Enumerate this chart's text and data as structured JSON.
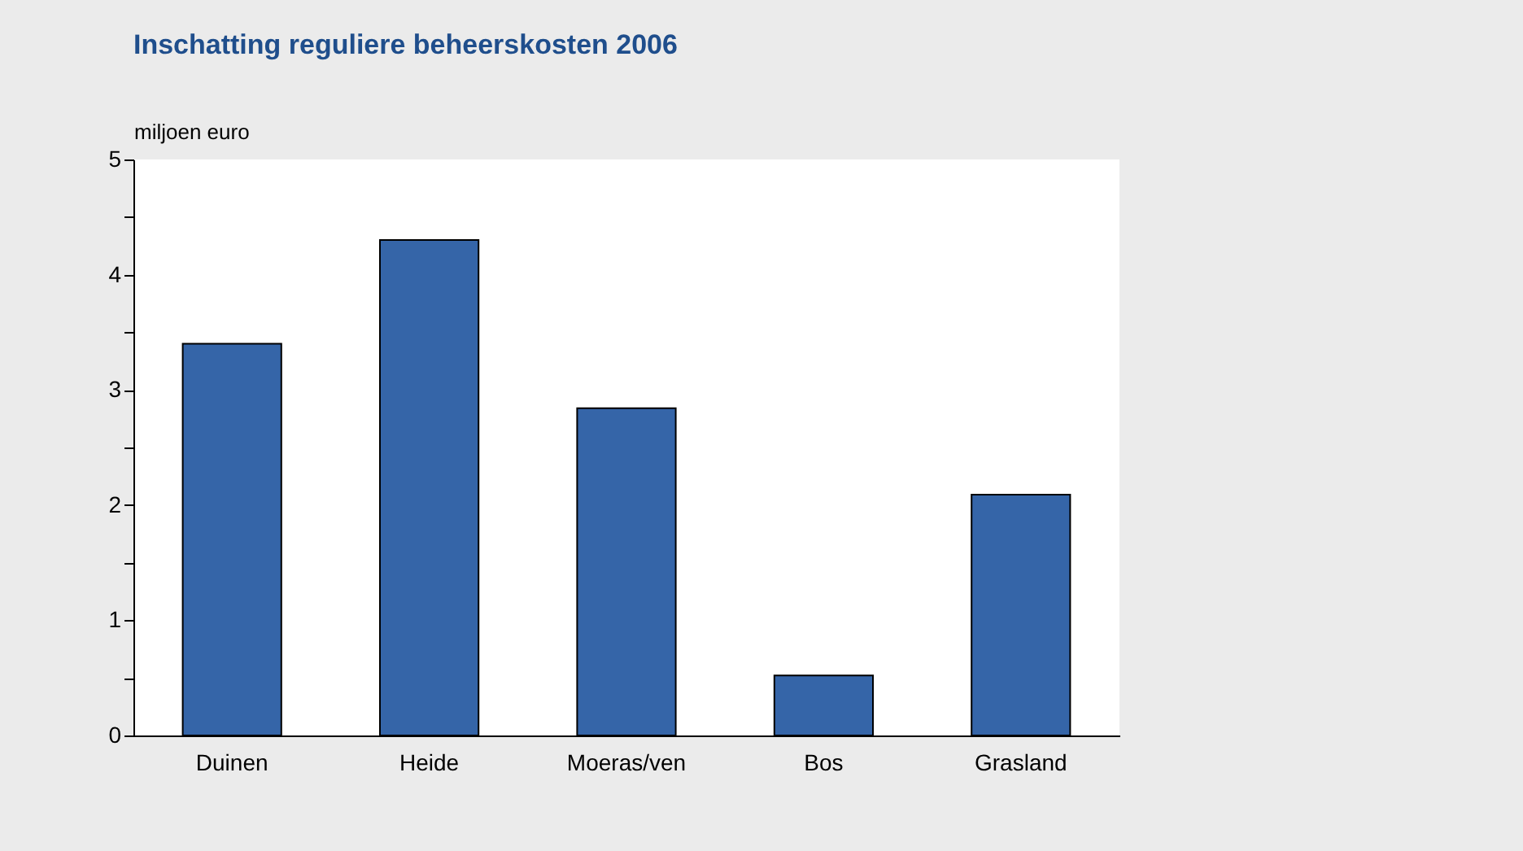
{
  "chart_data": {
    "type": "bar",
    "title": "Inschatting reguliere beheerskosten 2006",
    "ylabel": "miljoen euro",
    "categories": [
      "Duinen",
      "Heide",
      "Moeras/ven",
      "Bos",
      "Grasland"
    ],
    "values": [
      3.4,
      4.3,
      2.84,
      0.52,
      2.09
    ],
    "color": "#3565a8",
    "ylim": [
      0,
      5
    ],
    "yticks": [
      0,
      {
        "value": 0.5,
        "label": null
      },
      1,
      {
        "value": 1.5,
        "label": null
      },
      2,
      {
        "value": 2.5,
        "label": null
      },
      3,
      {
        "value": 3.5,
        "label": null
      },
      4,
      {
        "value": 4.5,
        "label": null
      },
      5
    ],
    "grid": false
  }
}
